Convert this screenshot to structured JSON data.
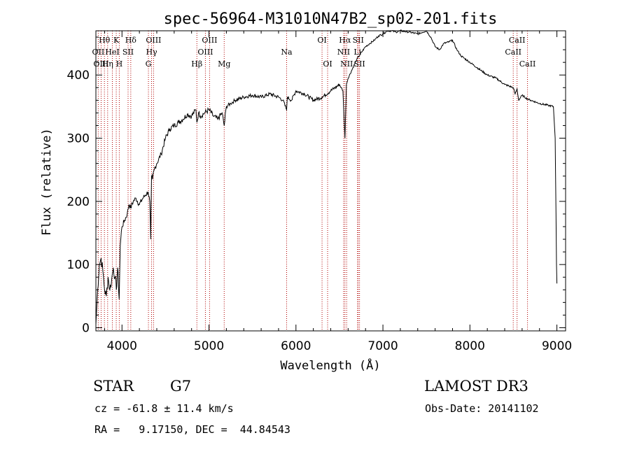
{
  "chart_data": {
    "type": "line",
    "title": "spec-56964-M31010N47B2_sp02-201.fits",
    "xlabel": "Wavelength (Å)",
    "ylabel": "Flux (relative)",
    "xlim": [
      3700,
      9100
    ],
    "ylim": [
      -5,
      470
    ],
    "x_ticks": [
      4000,
      5000,
      6000,
      7000,
      8000,
      9000
    ],
    "y_ticks": [
      0,
      100,
      200,
      300,
      400
    ],
    "series": [
      {
        "name": "flux",
        "x": [
          3700,
          3720,
          3740,
          3760,
          3780,
          3800,
          3820,
          3840,
          3860,
          3880,
          3900,
          3920,
          3935,
          3950,
          3968,
          3980,
          4000,
          4030,
          4060,
          4080,
          4101,
          4130,
          4160,
          4200,
          4240,
          4270,
          4300,
          4320,
          4330,
          4340,
          4350,
          4370,
          4400,
          4450,
          4500,
          4550,
          4600,
          4650,
          4700,
          4750,
          4800,
          4850,
          4861,
          4880,
          4900,
          4950,
          5000,
          5050,
          5100,
          5150,
          5175,
          5200,
          5250,
          5300,
          5400,
          5500,
          5600,
          5700,
          5800,
          5850,
          5893,
          5900,
          5950,
          6000,
          6100,
          6200,
          6300,
          6400,
          6500,
          6540,
          6563,
          6580,
          6600,
          6650,
          6700,
          6800,
          6850,
          6900,
          6950,
          7000,
          7050,
          7100,
          7150,
          7200,
          7300,
          7400,
          7500,
          7550,
          7600,
          7650,
          7700,
          7750,
          7800,
          7850,
          7900,
          8000,
          8100,
          8200,
          8300,
          8400,
          8498,
          8520,
          8542,
          8560,
          8600,
          8662,
          8700,
          8800,
          8900,
          8960,
          8980,
          8990,
          8995,
          9000
        ],
        "y": [
          5,
          60,
          100,
          110,
          90,
          60,
          50,
          80,
          60,
          75,
          95,
          80,
          60,
          95,
          45,
          130,
          160,
          170,
          180,
          195,
          190,
          200,
          205,
          195,
          205,
          210,
          215,
          200,
          140,
          240,
          235,
          250,
          260,
          275,
          300,
          315,
          320,
          325,
          330,
          338,
          335,
          345,
          325,
          340,
          335,
          340,
          345,
          335,
          330,
          340,
          320,
          350,
          355,
          360,
          365,
          368,
          365,
          370,
          365,
          360,
          345,
          365,
          360,
          375,
          370,
          360,
          365,
          375,
          385,
          375,
          300,
          385,
          395,
          410,
          425,
          445,
          450,
          455,
          462,
          465,
          470,
          470,
          468,
          470,
          468,
          465,
          470,
          460,
          445,
          440,
          450,
          452,
          455,
          440,
          430,
          420,
          410,
          400,
          395,
          385,
          380,
          370,
          378,
          360,
          368,
          362,
          360,
          355,
          352,
          350,
          300,
          180,
          100,
          70
        ]
      }
    ],
    "lines": [
      {
        "label": "Hθ",
        "x": 3798,
        "row": 1
      },
      {
        "label": "OII",
        "x": 3727,
        "row": 2
      },
      {
        "label": "OIII",
        "x": 3760,
        "row": 3
      },
      {
        "label": "K",
        "x": 3934,
        "row": 1
      },
      {
        "label": "HeI",
        "x": 3889,
        "row": 2
      },
      {
        "label": "Hη",
        "x": 3835,
        "row": 3
      },
      {
        "label": "SII",
        "x": 4070,
        "row": 2
      },
      {
        "label": "H",
        "x": 3969,
        "row": 3
      },
      {
        "label": "Hδ",
        "x": 4101,
        "row": 1
      },
      {
        "label": "OIII",
        "x": 4363,
        "row": 1
      },
      {
        "label": "Hγ",
        "x": 4340,
        "row": 2
      },
      {
        "label": "G",
        "x": 4304,
        "row": 3
      },
      {
        "label": "OIII",
        "x": 5007,
        "row": 1
      },
      {
        "label": "OIII",
        "x": 4959,
        "row": 2
      },
      {
        "label": "Hβ",
        "x": 4861,
        "row": 3
      },
      {
        "label": "Mg",
        "x": 5175,
        "row": 3
      },
      {
        "label": "Na",
        "x": 5893,
        "row": 2
      },
      {
        "label": "OI",
        "x": 6300,
        "row": 1
      },
      {
        "label": "OI",
        "x": 6364,
        "row": 3
      },
      {
        "label": "Hα",
        "x": 6563,
        "row": 1
      },
      {
        "label": "SII",
        "x": 6716,
        "row": 1
      },
      {
        "label": "NII",
        "x": 6548,
        "row": 2
      },
      {
        "label": "Li",
        "x": 6708,
        "row": 2
      },
      {
        "label": "NII",
        "x": 6583,
        "row": 3
      },
      {
        "label": "SII",
        "x": 6731,
        "row": 3
      },
      {
        "label": "CaII",
        "x": 8542,
        "row": 1
      },
      {
        "label": "CaII",
        "x": 8498,
        "row": 2
      },
      {
        "label": "CaII",
        "x": 8662,
        "row": 3
      }
    ]
  },
  "info": {
    "class": "STAR",
    "subclass": "G7",
    "survey": "LAMOST DR3",
    "cz": "cz = -61.8 ± 11.4 km/s",
    "obs_date": "Obs-Date: 20141102",
    "coords": "RA =   9.17150, DEC =  44.84543"
  }
}
